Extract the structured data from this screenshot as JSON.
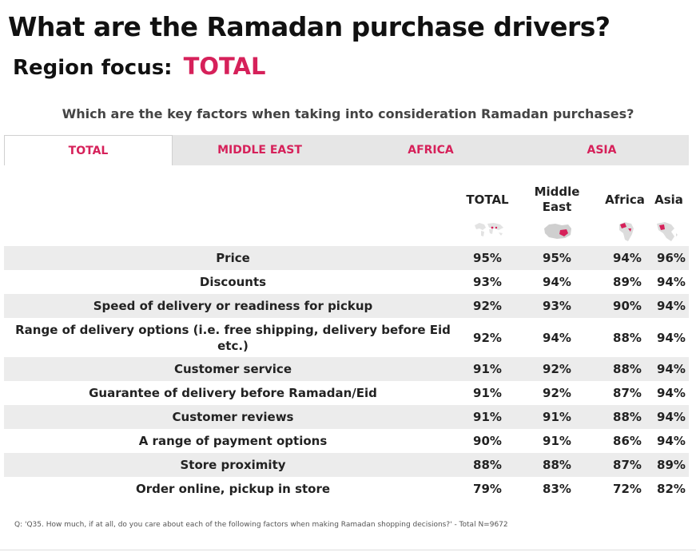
{
  "title": "What are the Ramadan purchase drivers?",
  "region_label": "Region focus:",
  "region_value": "TOTAL",
  "question": "Which are the key factors when taking into consideration Ramadan purchases?",
  "tabs": [
    {
      "label": "TOTAL",
      "active": true
    },
    {
      "label": "MIDDLE EAST",
      "active": false
    },
    {
      "label": "AFRICA",
      "active": false
    },
    {
      "label": "ASIA",
      "active": false
    }
  ],
  "columns": [
    "TOTAL",
    "Middle East",
    "Africa",
    "Asia"
  ],
  "rows": [
    {
      "label": "Price",
      "values": [
        "95%",
        "95%",
        "94%",
        "96%"
      ]
    },
    {
      "label": "Discounts",
      "values": [
        "93%",
        "94%",
        "89%",
        "94%"
      ]
    },
    {
      "label": "Speed of delivery or readiness for pickup",
      "values": [
        "92%",
        "93%",
        "90%",
        "94%"
      ]
    },
    {
      "label": "Range of delivery options (i.e. free shipping, delivery before Eid etc.)",
      "values": [
        "92%",
        "94%",
        "88%",
        "94%"
      ]
    },
    {
      "label": "Customer service",
      "values": [
        "91%",
        "92%",
        "88%",
        "94%"
      ]
    },
    {
      "label": "Guarantee of delivery before Ramadan/Eid",
      "values": [
        "91%",
        "92%",
        "87%",
        "94%"
      ]
    },
    {
      "label": "Customer reviews",
      "values": [
        "91%",
        "91%",
        "88%",
        "94%"
      ]
    },
    {
      "label": "A range of payment options",
      "values": [
        "90%",
        "91%",
        "86%",
        "94%"
      ]
    },
    {
      "label": "Store proximity",
      "values": [
        "88%",
        "88%",
        "87%",
        "89%"
      ]
    },
    {
      "label": "Order online, pickup in store",
      "values": [
        "79%",
        "83%",
        "72%",
        "82%"
      ]
    }
  ],
  "footnote": "Q: 'Q35. How much, if at all, do you care about each of the following factors when making Ramadan shopping decisions?' - Total N=9672",
  "colors": {
    "accent": "#d6215a",
    "tab_bg": "#e6e6e6",
    "row_shade": "#ececec"
  }
}
